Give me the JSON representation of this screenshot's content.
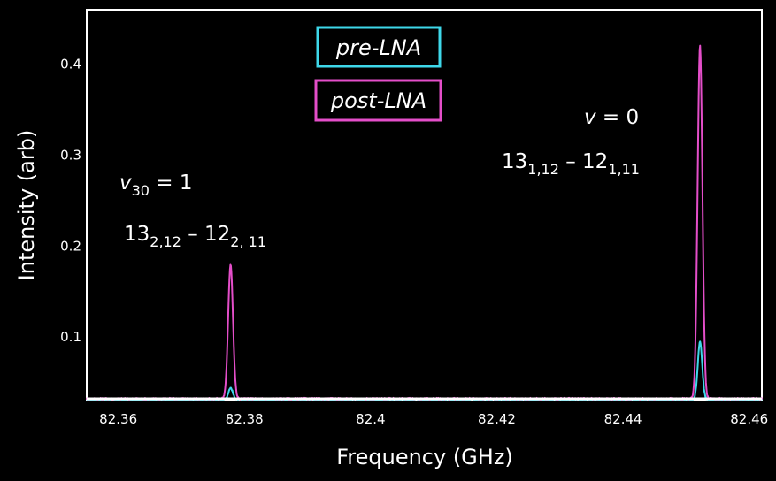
{
  "chart_data": {
    "type": "line",
    "title": "",
    "xlabel": "Frequency (GHz)",
    "ylabel": "Intensity (arb)",
    "xlim": [
      82.355,
      82.462
    ],
    "ylim": [
      0.03,
      0.46
    ],
    "grid": false,
    "legend_position": "top-center",
    "xticks": [
      "82.36",
      "82.38",
      "82.4",
      "82.42",
      "82.44",
      "82.46"
    ],
    "yticks": [
      "0.1",
      "0.2",
      "0.3",
      "0.4"
    ],
    "series": [
      {
        "name": "pre-LNA",
        "color": "#3ed8ea",
        "peaks": [
          {
            "x": 82.3778,
            "y": 0.044,
            "width": 0.00035
          },
          {
            "x": 82.4522,
            "y": 0.095,
            "width": 0.00035
          }
        ],
        "baseline": 0.031
      },
      {
        "name": "post-LNA",
        "color": "#e44ec9",
        "peaks": [
          {
            "x": 82.3778,
            "y": 0.18,
            "width": 0.00038
          },
          {
            "x": 82.4522,
            "y": 0.42,
            "width": 0.00038
          }
        ],
        "baseline": 0.032
      }
    ],
    "annotations": [
      {
        "id": "v30",
        "lines": [
          {
            "parts": [
              {
                "t": "v",
                "style": "italic"
              },
              {
                "t": "30",
                "style": "sub"
              },
              {
                "t": " = 1",
                "style": "normal"
              }
            ]
          },
          {
            "parts": [
              {
                "t": "13",
                "style": "normal"
              },
              {
                "t": "2,12",
                "style": "sub"
              },
              {
                "t": " – 12",
                "style": "normal"
              },
              {
                "t": "2, 11",
                "style": "sub"
              }
            ]
          }
        ]
      },
      {
        "id": "v0",
        "lines": [
          {
            "parts": [
              {
                "t": "v",
                "style": "italic"
              },
              {
                "t": " = 0",
                "style": "normal"
              }
            ]
          },
          {
            "parts": [
              {
                "t": "13",
                "style": "normal"
              },
              {
                "t": "1,12",
                "style": "sub"
              },
              {
                "t": " – 12",
                "style": "normal"
              },
              {
                "t": "1,11",
                "style": "sub"
              }
            ]
          }
        ]
      }
    ]
  },
  "colors": {
    "background": "#000000",
    "axis": "#ffffff",
    "pre_lna": "#3ed8ea",
    "post_lna": "#e44ec9"
  }
}
